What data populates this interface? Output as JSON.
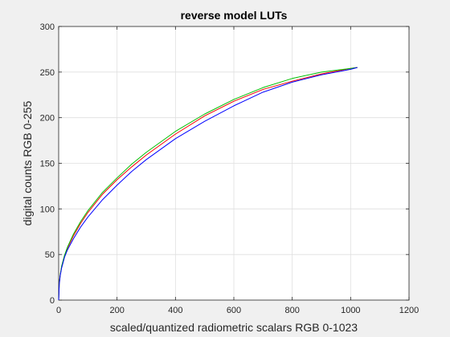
{
  "chart_data": {
    "type": "line",
    "title": "reverse model LUTs",
    "xlabel": "scaled/quantized radiometric scalars RGB 0-1023",
    "ylabel": "digital counts RGB 0-255",
    "xlim": [
      0,
      1200
    ],
    "ylim": [
      0,
      300
    ],
    "xticks": [
      0,
      200,
      400,
      600,
      800,
      1000,
      1200
    ],
    "yticks": [
      0,
      50,
      100,
      150,
      200,
      250,
      300
    ],
    "grid": true,
    "background": "#ffffff",
    "figure_background": "#f0f0f0",
    "series": [
      {
        "color": "#ff0000",
        "x": [
          0,
          2,
          5,
          10,
          20,
          30,
          50,
          75,
          100,
          150,
          200,
          250,
          300,
          400,
          500,
          600,
          700,
          800,
          900,
          1000,
          1023
        ],
        "y": [
          0,
          18,
          27,
          36,
          48,
          57,
          70,
          84,
          96,
          116,
          132,
          146,
          159,
          182,
          202,
          218,
          231,
          240,
          248,
          254,
          255
        ]
      },
      {
        "color": "#00c000",
        "x": [
          0,
          2,
          5,
          10,
          20,
          30,
          50,
          75,
          100,
          150,
          200,
          250,
          300,
          400,
          500,
          600,
          700,
          800,
          900,
          1000,
          1023
        ],
        "y": [
          0,
          18,
          27,
          37,
          49,
          58,
          72,
          86,
          98,
          118,
          134,
          149,
          162,
          185,
          204,
          220,
          233,
          243,
          250,
          254,
          255
        ]
      },
      {
        "color": "#0000ff",
        "x": [
          0,
          2,
          5,
          10,
          20,
          30,
          50,
          75,
          100,
          150,
          200,
          250,
          300,
          400,
          500,
          600,
          700,
          800,
          900,
          1000,
          1023
        ],
        "y": [
          0,
          17,
          26,
          35,
          47,
          55,
          67,
          80,
          91,
          110,
          126,
          141,
          154,
          177,
          196,
          213,
          228,
          239,
          247,
          253,
          255
        ]
      }
    ]
  }
}
